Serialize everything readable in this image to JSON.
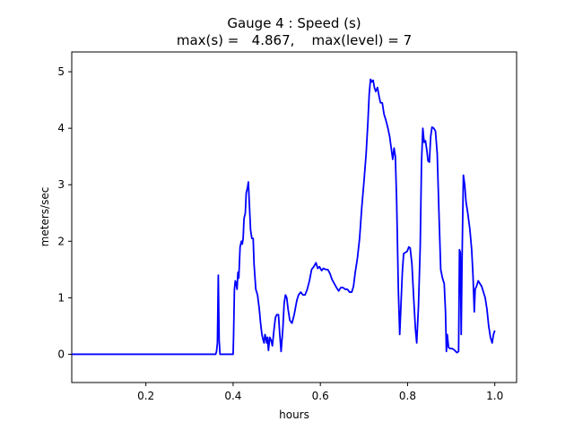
{
  "chart_data": {
    "type": "line",
    "title": "Gauge 4 : Speed (s)",
    "subtitle": "max(s) =   4.867,    max(level) = 7",
    "xlabel": "hours",
    "ylabel": "meters/sec",
    "xlim": [
      0.03,
      1.05
    ],
    "ylim": [
      -0.5,
      5.35
    ],
    "xticks": [
      0.2,
      0.4,
      0.6,
      0.8,
      1.0
    ],
    "xtick_labels": [
      "0.2",
      "0.4",
      "0.6",
      "0.8",
      "1.0"
    ],
    "yticks": [
      0,
      1,
      2,
      3,
      4,
      5
    ],
    "ytick_labels": [
      "0",
      "1",
      "2",
      "3",
      "4",
      "5"
    ],
    "grid": false,
    "series": [
      {
        "color": "#0000ff",
        "points": [
          [
            0.03,
            0.0
          ],
          [
            0.36,
            0.0
          ],
          [
            0.362,
            0.05
          ],
          [
            0.364,
            0.2
          ],
          [
            0.366,
            1.4
          ],
          [
            0.368,
            0.25
          ],
          [
            0.37,
            0.0
          ],
          [
            0.4,
            0.0
          ],
          [
            0.401,
            0.3
          ],
          [
            0.403,
            1.15
          ],
          [
            0.405,
            1.3
          ],
          [
            0.407,
            1.25
          ],
          [
            0.409,
            1.15
          ],
          [
            0.411,
            1.45
          ],
          [
            0.413,
            1.35
          ],
          [
            0.416,
            1.9
          ],
          [
            0.419,
            2.0
          ],
          [
            0.421,
            1.95
          ],
          [
            0.423,
            2.05
          ],
          [
            0.425,
            2.4
          ],
          [
            0.428,
            2.5
          ],
          [
            0.43,
            2.85
          ],
          [
            0.433,
            2.95
          ],
          [
            0.435,
            3.05
          ],
          [
            0.437,
            2.7
          ],
          [
            0.44,
            2.2
          ],
          [
            0.443,
            2.05
          ],
          [
            0.446,
            2.05
          ],
          [
            0.448,
            1.6
          ],
          [
            0.452,
            1.15
          ],
          [
            0.456,
            1.05
          ],
          [
            0.46,
            0.8
          ],
          [
            0.463,
            0.55
          ],
          [
            0.466,
            0.35
          ],
          [
            0.469,
            0.25
          ],
          [
            0.471,
            0.2
          ],
          [
            0.473,
            0.35
          ],
          [
            0.475,
            0.3
          ],
          [
            0.477,
            0.2
          ],
          [
            0.479,
            0.3
          ],
          [
            0.481,
            0.07
          ],
          [
            0.484,
            0.3
          ],
          [
            0.487,
            0.25
          ],
          [
            0.49,
            0.15
          ],
          [
            0.494,
            0.45
          ],
          [
            0.497,
            0.65
          ],
          [
            0.5,
            0.7
          ],
          [
            0.504,
            0.7
          ],
          [
            0.507,
            0.35
          ],
          [
            0.51,
            0.05
          ],
          [
            0.514,
            0.45
          ],
          [
            0.517,
            0.9
          ],
          [
            0.52,
            1.05
          ],
          [
            0.523,
            1.0
          ],
          [
            0.526,
            0.8
          ],
          [
            0.53,
            0.6
          ],
          [
            0.535,
            0.55
          ],
          [
            0.54,
            0.7
          ],
          [
            0.546,
            0.95
          ],
          [
            0.55,
            1.05
          ],
          [
            0.555,
            1.1
          ],
          [
            0.56,
            1.05
          ],
          [
            0.565,
            1.05
          ],
          [
            0.57,
            1.15
          ],
          [
            0.575,
            1.3
          ],
          [
            0.58,
            1.5
          ],
          [
            0.585,
            1.55
          ],
          [
            0.59,
            1.62
          ],
          [
            0.594,
            1.52
          ],
          [
            0.598,
            1.55
          ],
          [
            0.603,
            1.48
          ],
          [
            0.607,
            1.52
          ],
          [
            0.612,
            1.5
          ],
          [
            0.617,
            1.5
          ],
          [
            0.622,
            1.43
          ],
          [
            0.627,
            1.32
          ],
          [
            0.632,
            1.25
          ],
          [
            0.637,
            1.18
          ],
          [
            0.642,
            1.12
          ],
          [
            0.647,
            1.18
          ],
          [
            0.652,
            1.18
          ],
          [
            0.657,
            1.15
          ],
          [
            0.662,
            1.15
          ],
          [
            0.667,
            1.1
          ],
          [
            0.672,
            1.1
          ],
          [
            0.676,
            1.2
          ],
          [
            0.68,
            1.45
          ],
          [
            0.685,
            1.7
          ],
          [
            0.69,
            2.05
          ],
          [
            0.695,
            2.6
          ],
          [
            0.7,
            3.05
          ],
          [
            0.705,
            3.55
          ],
          [
            0.709,
            4.1
          ],
          [
            0.712,
            4.6
          ],
          [
            0.715,
            4.867
          ],
          [
            0.718,
            4.82
          ],
          [
            0.721,
            4.85
          ],
          [
            0.724,
            4.72
          ],
          [
            0.727,
            4.65
          ],
          [
            0.731,
            4.72
          ],
          [
            0.735,
            4.55
          ],
          [
            0.738,
            4.45
          ],
          [
            0.742,
            4.45
          ],
          [
            0.746,
            4.25
          ],
          [
            0.75,
            4.15
          ],
          [
            0.755,
            4.0
          ],
          [
            0.759,
            3.85
          ],
          [
            0.763,
            3.62
          ],
          [
            0.766,
            3.45
          ],
          [
            0.769,
            3.65
          ],
          [
            0.772,
            3.5
          ],
          [
            0.775,
            2.7
          ],
          [
            0.779,
            1.1
          ],
          [
            0.782,
            0.35
          ],
          [
            0.785,
            0.9
          ],
          [
            0.788,
            1.45
          ],
          [
            0.791,
            1.78
          ],
          [
            0.795,
            1.8
          ],
          [
            0.799,
            1.82
          ],
          [
            0.803,
            1.9
          ],
          [
            0.806,
            1.88
          ],
          [
            0.81,
            1.6
          ],
          [
            0.814,
            1.0
          ],
          [
            0.818,
            0.45
          ],
          [
            0.821,
            0.2
          ],
          [
            0.825,
            0.85
          ],
          [
            0.829,
            1.9
          ],
          [
            0.832,
            3.4
          ],
          [
            0.835,
            4.0
          ],
          [
            0.838,
            3.75
          ],
          [
            0.841,
            3.78
          ],
          [
            0.844,
            3.62
          ],
          [
            0.847,
            3.42
          ],
          [
            0.85,
            3.4
          ],
          [
            0.853,
            3.85
          ],
          [
            0.856,
            4.02
          ],
          [
            0.86,
            4.0
          ],
          [
            0.864,
            3.95
          ],
          [
            0.868,
            3.55
          ],
          [
            0.872,
            2.5
          ],
          [
            0.876,
            1.5
          ],
          [
            0.88,
            1.35
          ],
          [
            0.884,
            1.25
          ],
          [
            0.887,
            0.75
          ],
          [
            0.889,
            0.05
          ],
          [
            0.891,
            0.35
          ],
          [
            0.894,
            0.12
          ],
          [
            0.898,
            0.1
          ],
          [
            0.903,
            0.1
          ],
          [
            0.908,
            0.07
          ],
          [
            0.913,
            0.03
          ],
          [
            0.917,
            0.05
          ],
          [
            0.919,
            1.85
          ],
          [
            0.921,
            1.8
          ],
          [
            0.923,
            0.35
          ],
          [
            0.925,
            1.7
          ],
          [
            0.928,
            3.17
          ],
          [
            0.931,
            3.0
          ],
          [
            0.934,
            2.7
          ],
          [
            0.938,
            2.5
          ],
          [
            0.943,
            2.2
          ],
          [
            0.947,
            1.85
          ],
          [
            0.95,
            1.4
          ],
          [
            0.953,
            0.75
          ],
          [
            0.955,
            1.15
          ],
          [
            0.958,
            1.2
          ],
          [
            0.962,
            1.3
          ],
          [
            0.966,
            1.25
          ],
          [
            0.97,
            1.2
          ],
          [
            0.974,
            1.1
          ],
          [
            0.978,
            1.0
          ],
          [
            0.982,
            0.8
          ],
          [
            0.986,
            0.5
          ],
          [
            0.99,
            0.3
          ],
          [
            0.994,
            0.2
          ],
          [
            0.997,
            0.35
          ],
          [
            1.0,
            0.42
          ]
        ]
      }
    ]
  }
}
